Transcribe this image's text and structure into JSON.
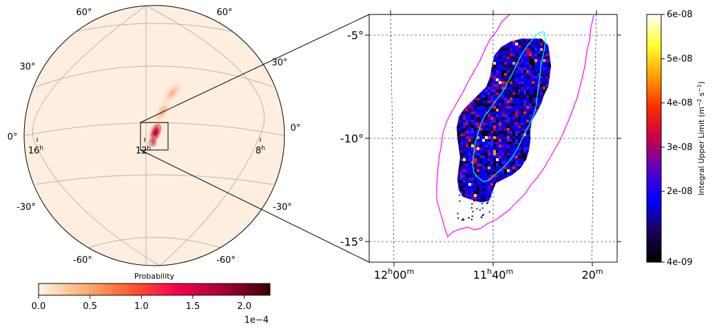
{
  "chart_data": [
    {
      "type": "heatmap",
      "panel": "globe",
      "projection": "orthographic",
      "colorbar": {
        "label": "Probability",
        "min": 0.0,
        "max": 0.000225,
        "ticks": [
          "0.0",
          "0.5",
          "1.0",
          "1.5",
          "2.0"
        ],
        "offset_text": "1e−4",
        "colormap": [
          "#fff5e6",
          "#ffb071",
          "#ff5a2e",
          "#f5004d",
          "#a50034",
          "#3a0000"
        ]
      },
      "lat_labels": {
        "top_left": "60°",
        "top_right": "60°",
        "upper_left": "30°",
        "upper_right": "30°",
        "mid_left": "0°",
        "mid_right": "0°",
        "lower_left": "-30°",
        "lower_right": "-30°",
        "bottom_left": "-60°",
        "bottom_right": "-60°"
      },
      "ra_labels": [
        {
          "hours": "16",
          "sup": "h"
        },
        {
          "hours": "12",
          "sup": "h"
        },
        {
          "hours": "8",
          "sup": "h"
        }
      ],
      "background_color": "#feeedf",
      "zoom_box": "inset"
    },
    {
      "type": "heatmap",
      "panel": "zoom",
      "y_ticks": [
        "-5°",
        "-10°",
        "-15°"
      ],
      "y_values": [
        -5,
        -10,
        -15
      ],
      "x_ticks": [
        {
          "main": "12",
          "sup1": "h",
          "mid": "00",
          "sup2": "m"
        },
        {
          "main": "11",
          "sup1": "h",
          "mid": "40",
          "sup2": "m"
        },
        {
          "main": "20",
          "sup2": "m"
        }
      ],
      "contours": [
        {
          "color": "#ff00ff"
        },
        {
          "color": "#00ffff"
        }
      ],
      "colorbar": {
        "label": "Integral Upper Limit (m",
        "label_sup": "−2",
        "label_mid": " s",
        "label_sup2": "−1",
        "label_end": ")",
        "min": 4e-09,
        "max": 6e-08,
        "ticks": [
          "6e-08",
          "5e-08",
          "4e-08",
          "3e-08",
          "2e-08",
          "4e-09"
        ],
        "colormap": [
          "#000000",
          "#1a0058",
          "#0000ff",
          "#5a00c8",
          "#c8004a",
          "#ff2a00",
          "#ffa000",
          "#ffff30",
          "#ffffff"
        ]
      }
    }
  ]
}
